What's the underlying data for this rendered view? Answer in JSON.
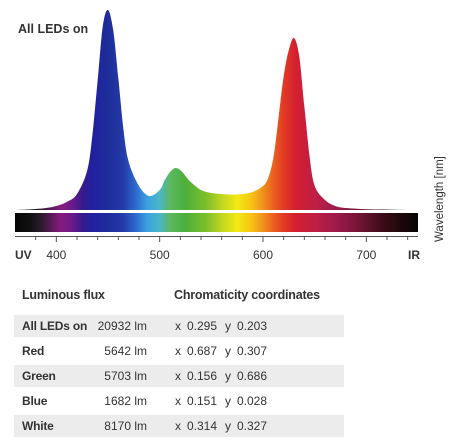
{
  "chart_data": {
    "type": "area",
    "title": "All LEDs on",
    "ylabel": "Wavelength [nm]",
    "xlim": [
      360,
      750
    ],
    "x_ticks": [
      400,
      500,
      600,
      700
    ],
    "x_end_labels": [
      "UV",
      "IR"
    ],
    "x": [
      360,
      370,
      380,
      390,
      400,
      410,
      420,
      430,
      435,
      440,
      445,
      450,
      455,
      460,
      465,
      470,
      480,
      490,
      500,
      505,
      510,
      515,
      520,
      525,
      530,
      540,
      550,
      560,
      570,
      580,
      590,
      600,
      605,
      610,
      615,
      620,
      625,
      630,
      635,
      640,
      645,
      650,
      660,
      670,
      680,
      700,
      720,
      740,
      750
    ],
    "values": [
      0,
      0.002,
      0.005,
      0.01,
      0.02,
      0.04,
      0.08,
      0.2,
      0.38,
      0.65,
      0.92,
      1.0,
      0.9,
      0.66,
      0.4,
      0.24,
      0.12,
      0.07,
      0.1,
      0.15,
      0.19,
      0.21,
      0.2,
      0.17,
      0.14,
      0.1,
      0.085,
      0.08,
      0.077,
      0.08,
      0.09,
      0.12,
      0.16,
      0.26,
      0.46,
      0.67,
      0.8,
      0.86,
      0.77,
      0.52,
      0.27,
      0.12,
      0.05,
      0.02,
      0.01,
      0.004,
      0.002,
      0,
      0
    ]
  },
  "table": {
    "header_flux": "Luminous flux",
    "header_chroma": "Chromaticity coordinates",
    "x_label": "x",
    "y_label": "y",
    "rows": [
      {
        "name": "All LEDs on",
        "flux": "20932 lm",
        "x": "0.295",
        "y": "0.203"
      },
      {
        "name": "Red",
        "flux": "5642 lm",
        "x": "0.687",
        "y": "0.307"
      },
      {
        "name": "Green",
        "flux": "5703 lm",
        "x": "0.156",
        "y": "0.686"
      },
      {
        "name": "Blue",
        "flux": "1682 lm",
        "x": "0.151",
        "y": "0.028"
      },
      {
        "name": "White",
        "flux": "8170 lm",
        "x": "0.314",
        "y": "0.327"
      }
    ]
  }
}
